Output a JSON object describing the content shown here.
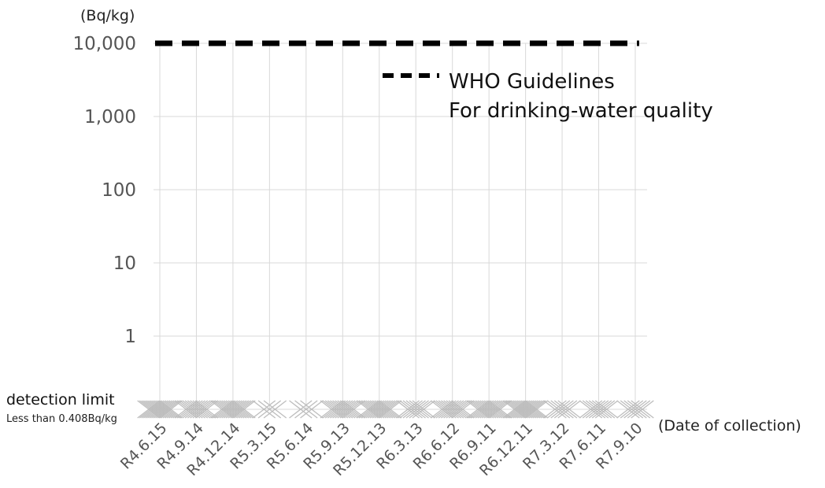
{
  "chart_data": {
    "type": "scatter",
    "y_unit": "(Bq/kg)",
    "x_unit": "(Date of collection)",
    "yscale": "log",
    "ylim": [
      1,
      10000
    ],
    "yticks": [
      {
        "value": 10000,
        "label": "10,000"
      },
      {
        "value": 1000,
        "label": "1,000"
      },
      {
        "value": 100,
        "label": "100"
      },
      {
        "value": 10,
        "label": "10"
      },
      {
        "value": 1,
        "label": "1"
      }
    ],
    "categories": [
      "R4.6.15",
      "R4.9.14",
      "R4.12.14",
      "R5.3.15",
      "R5.6.14",
      "R5.9.13",
      "R5.12.13",
      "R6.3.13",
      "R6.6.12",
      "R6.9.11",
      "R6.12.11",
      "R7.3.12",
      "R7.6.11",
      "R7.9.10"
    ],
    "grid": true,
    "detection_limit": {
      "title": "detection limit",
      "note": "Less than 0.408Bq/kg"
    },
    "reference_line": {
      "value": 10000,
      "style": "dashed",
      "color": "#000000",
      "legend_label_1": "WHO Guidelines",
      "legend_label_2": "For drinking-water quality"
    },
    "below_detection_counts": [
      12,
      9,
      11,
      3,
      3,
      10,
      11,
      6,
      9,
      11,
      12,
      5,
      6,
      5
    ],
    "marker_color": "#bdbdbd",
    "grid_color": "#d9d9d9",
    "legend_position": "top-right"
  }
}
